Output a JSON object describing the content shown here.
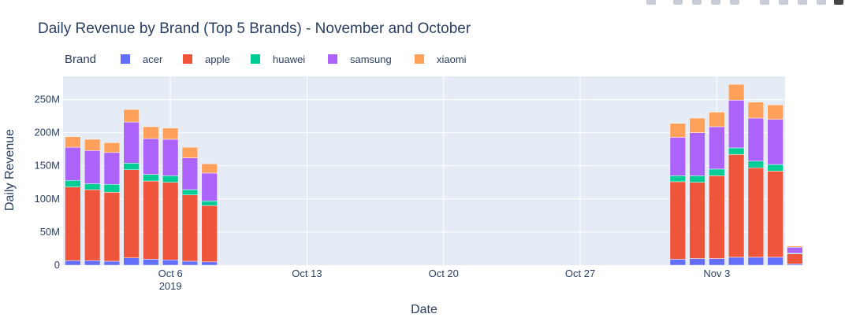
{
  "chart_data": {
    "type": "bar",
    "barmode": "stack",
    "title": "Daily Revenue by Brand (Top 5 Brands) - November and October",
    "xlabel": "Date",
    "ylabel": "Daily Revenue",
    "ylim": [
      0,
      285000000
    ],
    "yticks": [
      0,
      50000000,
      100000000,
      150000000,
      200000000,
      250000000
    ],
    "ytick_labels": [
      "0",
      "50M",
      "100M",
      "150M",
      "200M",
      "250M"
    ],
    "xrange": [
      "2019-09-30T12:00",
      "2019-11-06T12:00"
    ],
    "xticks": [
      "2019-10-06",
      "2019-10-13",
      "2019-10-20",
      "2019-10-27",
      "2019-11-03"
    ],
    "xtick_labels": [
      "Oct 6",
      "Oct 13",
      "Oct 20",
      "Oct 27",
      "Nov 3"
    ],
    "xtick_year": "2019",
    "grid": true,
    "legend": {
      "title": "Brand",
      "position": "top",
      "orientation": "horizontal"
    },
    "categories": [
      "2019-10-01",
      "2019-10-02",
      "2019-10-03",
      "2019-10-04",
      "2019-10-05",
      "2019-10-06",
      "2019-10-07",
      "2019-10-08",
      "2019-11-01",
      "2019-11-02",
      "2019-11-03",
      "2019-11-04",
      "2019-11-05",
      "2019-11-06",
      "2019-11-07"
    ],
    "series": [
      {
        "name": "acer",
        "color": "#636efa",
        "values": [
          7,
          7,
          6,
          11,
          9,
          8,
          6,
          5,
          9,
          10,
          10,
          12,
          12,
          12,
          2
        ]
      },
      {
        "name": "apple",
        "color": "#ef553b",
        "values": [
          111,
          107,
          104,
          133,
          118,
          117,
          100,
          85,
          117,
          115,
          125,
          155,
          135,
          130,
          15
        ]
      },
      {
        "name": "huawei",
        "color": "#00cc96",
        "values": [
          10,
          9,
          12,
          10,
          10,
          10,
          8,
          7,
          9,
          10,
          10,
          10,
          10,
          10,
          1
        ]
      },
      {
        "name": "samsung",
        "color": "#ab63fa",
        "values": [
          50,
          50,
          48,
          62,
          54,
          55,
          48,
          42,
          58,
          65,
          64,
          72,
          65,
          68,
          9
        ]
      },
      {
        "name": "xiaomi",
        "color": "#ffa15a",
        "values": [
          16,
          17,
          15,
          19,
          18,
          17,
          16,
          14,
          21,
          22,
          22,
          24,
          24,
          22,
          2
        ]
      }
    ],
    "value_unit": "M"
  }
}
